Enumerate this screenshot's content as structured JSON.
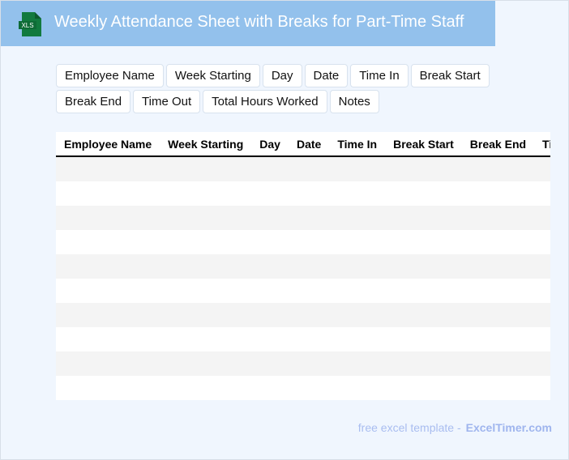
{
  "header": {
    "title": "Weekly Attendance Sheet with Breaks for Part-Time Staff",
    "logo_text": "XLS",
    "logo_icon": "excel-file-icon",
    "color": "#93c1ec"
  },
  "chips": [
    "Employee Name",
    "Week Starting",
    "Day",
    "Date",
    "Time In",
    "Break Start",
    "Break End",
    "Time Out",
    "Total Hours Worked",
    "Notes"
  ],
  "table": {
    "columns": [
      "Employee Name",
      "Week Starting",
      "Day",
      "Date",
      "Time In",
      "Break Start",
      "Break End",
      "Time Out"
    ],
    "row_count": 10
  },
  "footer": {
    "prefix": "free excel template -",
    "brand": "ExcelTimer.com"
  }
}
